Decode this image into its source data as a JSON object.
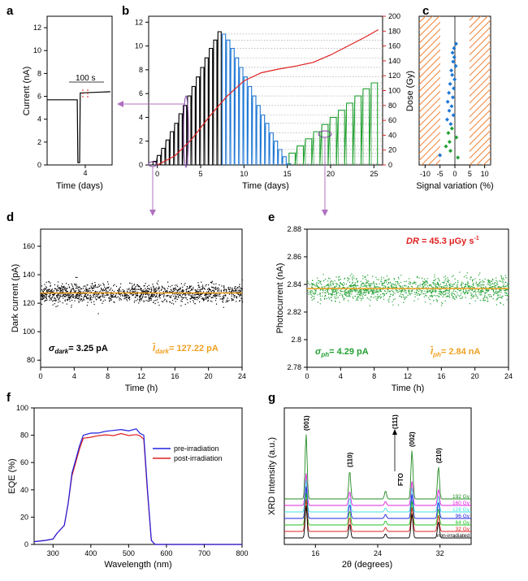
{
  "panels": {
    "a": {
      "letter": "a",
      "xlabel": "Time (days)",
      "ylabel": "Current (nA)",
      "xticks": [
        "4"
      ],
      "yticks": [
        0,
        2,
        4,
        6,
        8,
        10,
        12
      ],
      "ylim": [
        0,
        13
      ],
      "annotation": "100 s",
      "chart_data": {
        "type": "line",
        "x_days": [
          3.0,
          3.85,
          3.88,
          3.9,
          3.95,
          3.97,
          4.0,
          4.85
        ],
        "y": [
          5.7,
          5.7,
          5.7,
          0.2,
          0.2,
          6.3,
          6.3,
          6.4
        ]
      }
    },
    "b": {
      "letter": "b",
      "xlabel": "Time (days)",
      "ylabel_right": "Dose (Gy)",
      "xticks": [
        0,
        5,
        10,
        15,
        20,
        25
      ],
      "yticks_left": [
        0,
        2,
        4,
        6,
        8,
        10,
        12
      ],
      "yticks_right": [
        0,
        20,
        40,
        60,
        80,
        100,
        120,
        140,
        160,
        180,
        200
      ],
      "xlim": [
        -1,
        26
      ],
      "ylim_left": [
        0,
        12.5
      ],
      "ylim_right": [
        0,
        200
      ],
      "colors": {
        "ramp_up": "#000000",
        "ramp_down": "#1f77d4",
        "ramp_green": "#22a032",
        "dose": "#e02020"
      },
      "chart_data": {
        "type": "line",
        "ramp_up_levels": [
          0.3,
          0.8,
          1.4,
          2.1,
          2.8,
          3.5,
          4.3,
          5.0,
          5.8,
          6.6,
          7.4,
          8.2,
          9.0,
          9.8,
          10.5,
          11.2
        ],
        "ramp_down_levels": [
          11.0,
          10.5,
          9.8,
          9.0,
          8.2,
          7.4,
          6.6,
          5.8,
          5.0,
          4.2,
          3.5,
          2.7,
          2.0,
          1.3,
          0.7,
          0.1
        ],
        "ramp_green_levels": [
          1.0,
          1.6,
          2.2,
          2.8,
          3.4,
          4.0,
          4.6,
          5.2,
          5.8,
          6.4,
          6.9
        ],
        "dose_x": [
          0,
          2,
          4,
          6,
          8,
          10,
          12,
          14,
          16,
          18,
          20,
          22,
          24,
          25.5
        ],
        "dose_y": [
          0,
          12,
          35,
          65,
          92,
          113,
          124,
          129,
          133,
          138,
          148,
          160,
          172,
          182
        ]
      }
    },
    "c": {
      "letter": "c",
      "xlabel": "Signal variation (%)",
      "xticks": [
        -10,
        -5,
        0,
        5,
        10
      ],
      "xlim": [
        -12,
        12
      ],
      "colors": {
        "hatch": "#f08030",
        "points_blue": "#1f77d4",
        "points_green": "#22a032"
      },
      "chart_data": {
        "type": "scatter",
        "points": [
          {
            "x": 0.4,
            "y": 163,
            "c": "blue"
          },
          {
            "x": -0.3,
            "y": 157,
            "c": "blue"
          },
          {
            "x": -0.8,
            "y": 151,
            "c": "blue"
          },
          {
            "x": -0.2,
            "y": 145,
            "c": "blue"
          },
          {
            "x": -0.6,
            "y": 139,
            "c": "blue"
          },
          {
            "x": 0.3,
            "y": 133,
            "c": "blue"
          },
          {
            "x": -1.2,
            "y": 127,
            "c": "blue"
          },
          {
            "x": -0.9,
            "y": 121,
            "c": "blue"
          },
          {
            "x": -0.1,
            "y": 115,
            "c": "blue"
          },
          {
            "x": -1.6,
            "y": 109,
            "c": "blue"
          },
          {
            "x": -0.4,
            "y": 103,
            "c": "blue"
          },
          {
            "x": -2.0,
            "y": 97,
            "c": "blue"
          },
          {
            "x": -0.7,
            "y": 91,
            "c": "blue"
          },
          {
            "x": -2.4,
            "y": 85,
            "c": "blue"
          },
          {
            "x": -1.1,
            "y": 79,
            "c": "blue"
          },
          {
            "x": -1.9,
            "y": 73,
            "c": "blue"
          },
          {
            "x": -0.5,
            "y": 67,
            "c": "blue"
          },
          {
            "x": -2.6,
            "y": 61,
            "c": "blue"
          },
          {
            "x": -1.4,
            "y": 55,
            "c": "blue"
          },
          {
            "x": -1.0,
            "y": 49,
            "c": "green"
          },
          {
            "x": -2.2,
            "y": 43,
            "c": "green"
          },
          {
            "x": 0.5,
            "y": 37,
            "c": "green"
          },
          {
            "x": -1.8,
            "y": 31,
            "c": "green"
          },
          {
            "x": -3.0,
            "y": 25,
            "c": "green"
          },
          {
            "x": -1.5,
            "y": 19,
            "c": "green"
          },
          {
            "x": -5.0,
            "y": 13,
            "c": "blue"
          },
          {
            "x": 1.0,
            "y": 10,
            "c": "green"
          }
        ]
      }
    },
    "d": {
      "letter": "d",
      "xlabel": "Time (h)",
      "ylabel": "Dark current (pA)",
      "xticks": [
        0,
        4,
        8,
        12,
        16,
        20,
        24
      ],
      "yticks": [
        80,
        100,
        120,
        140,
        160
      ],
      "ylim": [
        75,
        172
      ],
      "sigma_text": "= 3.25 pA",
      "sigma_sub": "dark",
      "mean_text": "= 127.22 pA",
      "mean_sub": "dark",
      "colors": {
        "points": "#000000",
        "mean": "#f0a020"
      },
      "chart_data": {
        "type": "scatter",
        "mean": 127.22,
        "sigma": 3.25,
        "x_range_h": [
          0,
          24
        ]
      }
    },
    "e": {
      "letter": "e",
      "xlabel": "Time (h)",
      "ylabel": "Photocurrent (nA)",
      "xticks": [
        0,
        4,
        8,
        12,
        16,
        20,
        24
      ],
      "yticks": [
        "2.78",
        "2.8",
        "2.82",
        "2.84",
        "2.86",
        "2.88"
      ],
      "ylim": [
        2.78,
        2.88
      ],
      "dr_label": "DR",
      "dr_text": " = 45.3 μGy s",
      "dr_exp": "-1",
      "sigma_text": "= 4.29 pA",
      "sigma_sub": "ph",
      "mean_text": "= 2.84 nA",
      "mean_sub": "ph",
      "colors": {
        "points": "#22a032",
        "mean": "#f0a020",
        "dr": "#e02020"
      },
      "chart_data": {
        "type": "scatter",
        "mean": 2.837,
        "sigma": 0.00429,
        "x_range_h": [
          0,
          24
        ]
      }
    },
    "f": {
      "letter": "f",
      "xlabel": "Wavelength (nm)",
      "ylabel": "EQE (%)",
      "xticks": [
        300,
        400,
        500,
        600,
        700,
        800
      ],
      "yticks": [
        0,
        20,
        40,
        60,
        80,
        100
      ],
      "xlim": [
        250,
        800
      ],
      "ylim": [
        0,
        100
      ],
      "legend": [
        "pre-irradiation",
        "post-irradiation"
      ],
      "colors": {
        "pre": "#2020e0",
        "post": "#e02020"
      },
      "chart_data": {
        "type": "line",
        "x": [
          250,
          280,
          300,
          310,
          320,
          330,
          340,
          350,
          360,
          370,
          380,
          400,
          420,
          440,
          460,
          480,
          500,
          520,
          530,
          540,
          550,
          560,
          570,
          600,
          800
        ],
        "series": [
          {
            "name": "pre-irradiation",
            "values": [
              2,
              3,
              4,
              8,
              11,
              14,
              30,
              52,
              62,
              72,
              80,
              81,
              82,
              83,
              84,
              84,
              83,
              84,
              82,
              80,
              40,
              3,
              0,
              0,
              0
            ]
          },
          {
            "name": "post-irradiation",
            "values": [
              2,
              3,
              4,
              8,
              11,
              14,
              30,
              50,
              60,
              70,
              78,
              79,
              80,
              81,
              80,
              81,
              80,
              80,
              79,
              77,
              38,
              3,
              0,
              0,
              0
            ]
          }
        ]
      }
    },
    "g": {
      "letter": "g",
      "xlabel": "2θ (degrees)",
      "ylabel": "XRD Intensity (a.u.)",
      "xticks": [
        16,
        24,
        32
      ],
      "xlim": [
        12,
        36
      ],
      "peaks": [
        "(001)",
        "(110)",
        "(111)",
        "(002)",
        "(210)"
      ],
      "fto_label": "FTO",
      "series_labels": [
        "192 Gy",
        "160 Gy",
        "128 Gy",
        "96 Gy",
        "64 Gy",
        "32 Gy",
        "non-irradiated"
      ],
      "series_colors": [
        "#228b22",
        "#e020e0",
        "#40e0e0",
        "#2020e0",
        "#22c022",
        "#e02020",
        "#000000"
      ],
      "chart_data": {
        "type": "line",
        "peak_positions": [
          14.8,
          20.4,
          25.0,
          28.4,
          31.8
        ],
        "peak_heights": [
          80,
          35,
          10,
          60,
          40
        ]
      }
    }
  }
}
